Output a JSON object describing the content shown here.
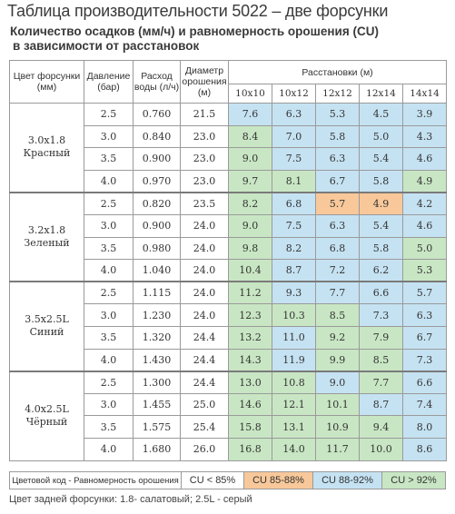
{
  "title": "Таблица производительности 5022 – две форсунки",
  "subtitle_line1": "Количество осадков (мм/ч) и равномерность орошения (CU)",
  "subtitle_line2": "в зависимости от расстановок",
  "headers": {
    "color": "Цвет форсунки (мм)",
    "pressure": "Давление (бар)",
    "flow": "Расход воды (л/ч)",
    "diameter": "Диаметр орошения (м)",
    "spacing": "Расстановки (м)",
    "spacings": [
      "10x10",
      "10x12",
      "12x12",
      "12x14",
      "14x14"
    ]
  },
  "colors": {
    "blue": "#c5e2f2",
    "green": "#c8e6c3",
    "orange": "#f8c89a"
  },
  "groups": [
    {
      "nozzle_line1": "3.0x1.8",
      "nozzle_line2": "Красный",
      "rows": [
        {
          "pressure": "2.5",
          "flow": "0.760",
          "diameter": "21.5",
          "values": [
            "7.6",
            "6.3",
            "5.3",
            "4.5",
            "3.9"
          ],
          "cu": [
            "blue",
            "blue",
            "blue",
            "blue",
            "blue"
          ]
        },
        {
          "pressure": "3.0",
          "flow": "0.840",
          "diameter": "23.0",
          "values": [
            "8.4",
            "7.0",
            "5.8",
            "5.0",
            "4.3"
          ],
          "cu": [
            "green",
            "blue",
            "blue",
            "blue",
            "blue"
          ]
        },
        {
          "pressure": "3.5",
          "flow": "0.900",
          "diameter": "23.0",
          "values": [
            "9.0",
            "7.5",
            "6.3",
            "5.4",
            "4.6"
          ],
          "cu": [
            "green",
            "blue",
            "blue",
            "blue",
            "blue"
          ]
        },
        {
          "pressure": "4.0",
          "flow": "0.970",
          "diameter": "23.0",
          "values": [
            "9.7",
            "8.1",
            "6.7",
            "5.8",
            "4.9"
          ],
          "cu": [
            "green",
            "green",
            "blue",
            "blue",
            "green"
          ]
        }
      ]
    },
    {
      "nozzle_line1": "3.2x1.8",
      "nozzle_line2": "Зеленый",
      "rows": [
        {
          "pressure": "2.5",
          "flow": "0.820",
          "diameter": "23.5",
          "values": [
            "8.2",
            "6.8",
            "5.7",
            "4.9",
            "4.2"
          ],
          "cu": [
            "green",
            "blue",
            "orange",
            "orange",
            "blue"
          ]
        },
        {
          "pressure": "3.0",
          "flow": "0.900",
          "diameter": "24.0",
          "values": [
            "9.0",
            "7.5",
            "6.3",
            "5.4",
            "4.6"
          ],
          "cu": [
            "green",
            "blue",
            "blue",
            "blue",
            "blue"
          ]
        },
        {
          "pressure": "3.5",
          "flow": "0.980",
          "diameter": "24.0",
          "values": [
            "9.8",
            "8.2",
            "6.8",
            "5.8",
            "5.0"
          ],
          "cu": [
            "green",
            "blue",
            "blue",
            "blue",
            "green"
          ]
        },
        {
          "pressure": "4.0",
          "flow": "1.040",
          "diameter": "24.0",
          "values": [
            "10.4",
            "8.7",
            "7.2",
            "6.2",
            "5.3"
          ],
          "cu": [
            "green",
            "blue",
            "blue",
            "blue",
            "green"
          ]
        }
      ]
    },
    {
      "nozzle_line1": "3.5x2.5L",
      "nozzle_line2": "Синий",
      "rows": [
        {
          "pressure": "2.5",
          "flow": "1.115",
          "diameter": "24.0",
          "values": [
            "11.2",
            "9.3",
            "7.7",
            "6.6",
            "5.7"
          ],
          "cu": [
            "green",
            "blue",
            "blue",
            "blue",
            "blue"
          ]
        },
        {
          "pressure": "3.0",
          "flow": "1.230",
          "diameter": "24.0",
          "values": [
            "12.3",
            "10.3",
            "8.5",
            "7.3",
            "6.3"
          ],
          "cu": [
            "green",
            "green",
            "green",
            "blue",
            "blue"
          ]
        },
        {
          "pressure": "3.5",
          "flow": "1.320",
          "diameter": "24.4",
          "values": [
            "13.2",
            "11.0",
            "9.2",
            "7.9",
            "6.7"
          ],
          "cu": [
            "green",
            "blue",
            "green",
            "green",
            "blue"
          ]
        },
        {
          "pressure": "4.0",
          "flow": "1.430",
          "diameter": "24.4",
          "values": [
            "14.3",
            "11.9",
            "9.9",
            "8.5",
            "7.3"
          ],
          "cu": [
            "green",
            "blue",
            "green",
            "green",
            "blue"
          ]
        }
      ]
    },
    {
      "nozzle_line1": "4.0x2.5L",
      "nozzle_line2": "Чёрный",
      "rows": [
        {
          "pressure": "2.5",
          "flow": "1.300",
          "diameter": "24.4",
          "values": [
            "13.0",
            "10.8",
            "9.0",
            "7.7",
            "6.6"
          ],
          "cu": [
            "green",
            "green",
            "blue",
            "green",
            "blue"
          ]
        },
        {
          "pressure": "3.0",
          "flow": "1.455",
          "diameter": "25.0",
          "values": [
            "14.6",
            "12.1",
            "10.1",
            "8.7",
            "7.4"
          ],
          "cu": [
            "green",
            "green",
            "green",
            "blue",
            "blue"
          ]
        },
        {
          "pressure": "3.5",
          "flow": "1.575",
          "diameter": "25.4",
          "values": [
            "15.8",
            "13.1",
            "10.9",
            "9.4",
            "8.0"
          ],
          "cu": [
            "green",
            "green",
            "green",
            "green",
            "blue"
          ]
        },
        {
          "pressure": "4.0",
          "flow": "1.680",
          "diameter": "26.0",
          "values": [
            "16.8",
            "14.0",
            "11.7",
            "10.0",
            "8.6"
          ],
          "cu": [
            "green",
            "green",
            "green",
            "green",
            "blue"
          ]
        }
      ]
    }
  ],
  "legend": {
    "label": "Цветовой код - Равномерность орошения",
    "items": [
      {
        "text": "CU < 85%",
        "color": "white"
      },
      {
        "text": "CU 85-88%",
        "color": "orange"
      },
      {
        "text": "CU 88-92%",
        "color": "blue"
      },
      {
        "text": "CU > 92%",
        "color": "green"
      }
    ]
  },
  "footnote": "Цвет задней форсунки: 1.8- салатовый; 2.5L - серый"
}
